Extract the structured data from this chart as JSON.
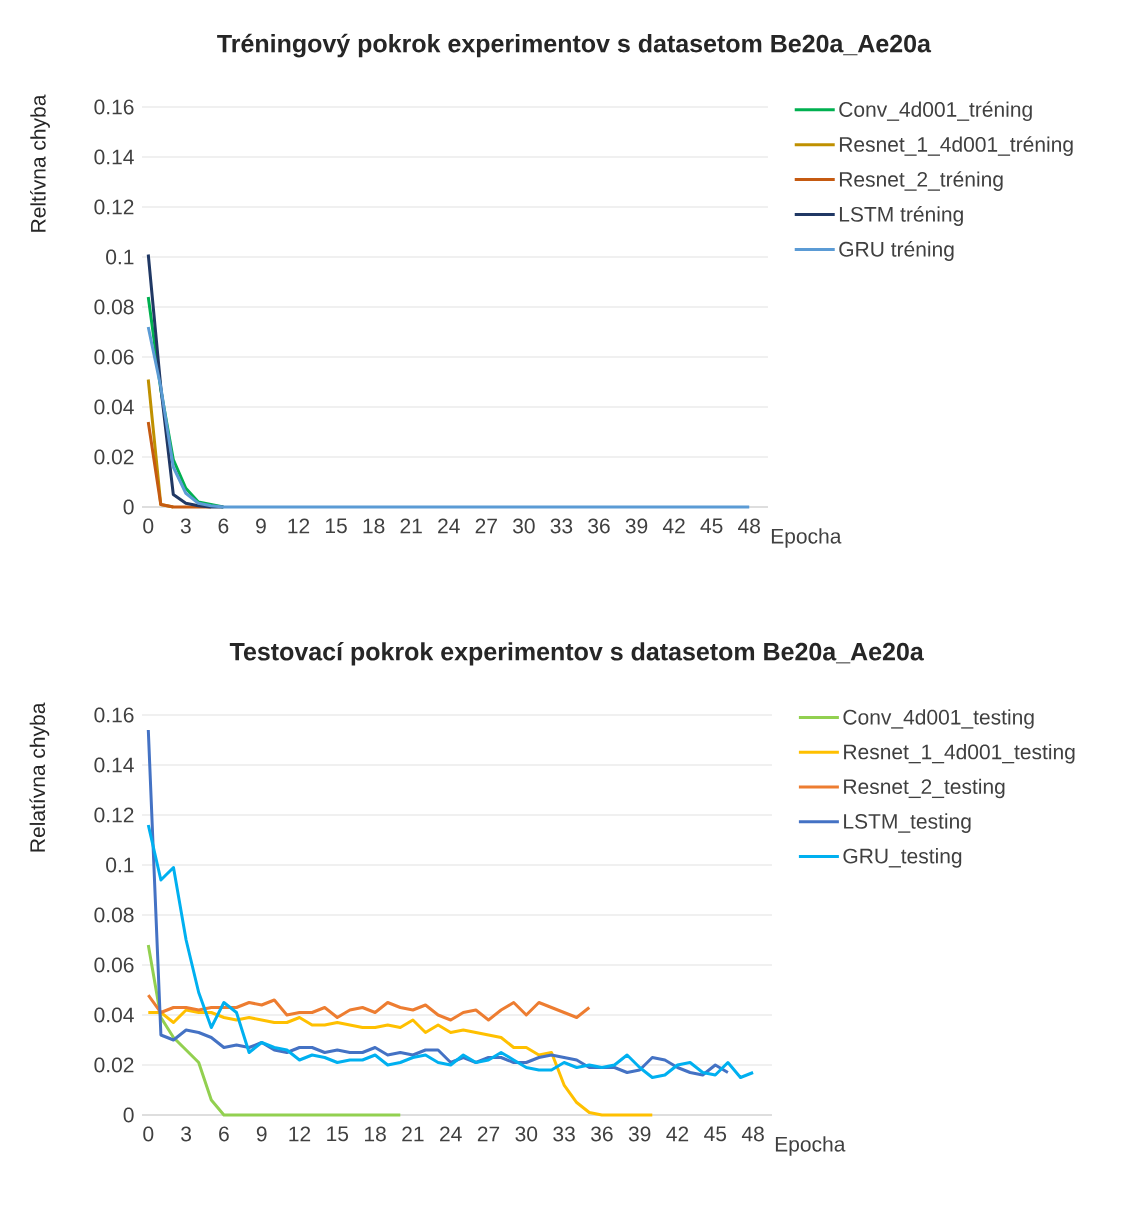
{
  "chart_data": [
    {
      "type": "line",
      "title": "Tréningový pokrok experimentov s datasetom Be20a_Ae20a",
      "xlabel": "Epocha",
      "ylabel": "Reltívna chyba",
      "grid": "y",
      "legend": "right",
      "marker": "none",
      "line_style": "solid",
      "xlim": [
        -0.5,
        49.5
      ],
      "ylim": [
        0,
        0.16
      ],
      "xticks": [
        0,
        3,
        6,
        9,
        12,
        15,
        18,
        21,
        24,
        27,
        30,
        33,
        36,
        39,
        42,
        45,
        48
      ],
      "yticks": [
        0,
        0.02,
        0.04,
        0.06,
        0.08,
        0.1,
        0.12,
        0.14,
        0.16
      ],
      "x": [
        0,
        1,
        2,
        3,
        4,
        5,
        6,
        7,
        8,
        9,
        10,
        11,
        12,
        13,
        14,
        15,
        16,
        17,
        18,
        19,
        20,
        21,
        22,
        23,
        24,
        25,
        26,
        27,
        28,
        29,
        30,
        31,
        32,
        33,
        34,
        35,
        36,
        37,
        38,
        39,
        40,
        41,
        42,
        43,
        44,
        45,
        46,
        47,
        48
      ],
      "series": [
        {
          "name": "Conv_4d001_tréning",
          "color": "#00b050",
          "values": [
            0.084,
            0.047,
            0.019,
            0.0075,
            0.002,
            0.001,
            0,
            null,
            null,
            null,
            null,
            null,
            null,
            null,
            null,
            null,
            null,
            null,
            null,
            null,
            null,
            null,
            null,
            null,
            null,
            null,
            null,
            null,
            null,
            null,
            null,
            null,
            null,
            null,
            null,
            null,
            null,
            null,
            null,
            null,
            null,
            null,
            null,
            null,
            null,
            null,
            null,
            null,
            null
          ]
        },
        {
          "name": "Resnet_1_4d001_tréning",
          "color": "#bf9000",
          "values": [
            0.051,
            0.001,
            0,
            null,
            null,
            null,
            null,
            null,
            null,
            null,
            null,
            null,
            null,
            null,
            null,
            null,
            null,
            null,
            null,
            null,
            null,
            null,
            null,
            null,
            null,
            null,
            null,
            null,
            null,
            null,
            null,
            null,
            null,
            null,
            null,
            null,
            null,
            null,
            null,
            null,
            null,
            null,
            null,
            null,
            null,
            null,
            null,
            null,
            null
          ]
        },
        {
          "name": "Resnet_2_tréning",
          "color": "#c55a11",
          "values": [
            0.034,
            0.001,
            0,
            0,
            0,
            0,
            null,
            null,
            null,
            null,
            null,
            null,
            null,
            null,
            null,
            null,
            null,
            null,
            null,
            null,
            null,
            null,
            null,
            null,
            null,
            null,
            null,
            null,
            null,
            null,
            null,
            null,
            null,
            null,
            null,
            null,
            null,
            null,
            null,
            null,
            null,
            null,
            null,
            null,
            null,
            null,
            null,
            null,
            null
          ]
        },
        {
          "name": "LSTM tréning",
          "color": "#203864",
          "values": [
            0.101,
            0.048,
            0.005,
            0.0015,
            0.0005,
            0,
            0,
            null,
            null,
            null,
            null,
            null,
            null,
            null,
            null,
            null,
            null,
            null,
            null,
            null,
            null,
            null,
            null,
            null,
            null,
            null,
            null,
            null,
            null,
            null,
            null,
            null,
            null,
            null,
            null,
            null,
            null,
            null,
            null,
            null,
            null,
            null,
            null,
            null,
            null,
            null,
            null,
            null,
            null
          ]
        },
        {
          "name": "GRU tréning",
          "color": "#5b9bd5",
          "values": [
            0.072,
            0.048,
            0.016,
            0.0055,
            0.0015,
            0.0005,
            0,
            0,
            0,
            0,
            0,
            0,
            0,
            0,
            0,
            0,
            0,
            0,
            0,
            0,
            0,
            0,
            0,
            0,
            0,
            0,
            0,
            0,
            0,
            0,
            0,
            0,
            0,
            0,
            0,
            0,
            0,
            0,
            0,
            0,
            0,
            0,
            0,
            0,
            0,
            0,
            0,
            0,
            0
          ]
        }
      ]
    },
    {
      "type": "line",
      "title": "Testovací pokrok experimentov s datasetom Be20a_Ae20a",
      "xlabel": "Epocha",
      "ylabel": "Relatívna chyba",
      "grid": "y",
      "legend": "right",
      "marker": "none",
      "line_style": "solid",
      "xlim": [
        -0.5,
        49.5
      ],
      "ylim": [
        0,
        0.16
      ],
      "xticks": [
        0,
        3,
        6,
        9,
        12,
        15,
        18,
        21,
        24,
        27,
        30,
        33,
        36,
        39,
        42,
        45,
        48
      ],
      "yticks": [
        0,
        0.02,
        0.04,
        0.06,
        0.08,
        0.1,
        0.12,
        0.14,
        0.16
      ],
      "x": [
        0,
        1,
        2,
        3,
        4,
        5,
        6,
        7,
        8,
        9,
        10,
        11,
        12,
        13,
        14,
        15,
        16,
        17,
        18,
        19,
        20,
        21,
        22,
        23,
        24,
        25,
        26,
        27,
        28,
        29,
        30,
        31,
        32,
        33,
        34,
        35,
        36,
        37,
        38,
        39,
        40,
        41,
        42,
        43,
        44,
        45,
        46,
        47,
        48
      ],
      "series": [
        {
          "name": "Conv_4d001_testing",
          "color": "#92d050",
          "values": [
            0.068,
            0.039,
            0.031,
            0.026,
            0.021,
            0.006,
            0,
            0,
            0,
            0,
            0,
            0,
            0,
            0,
            0,
            0,
            0,
            0,
            0,
            0,
            0,
            null,
            null,
            null,
            null,
            null,
            null,
            null,
            null,
            null,
            null,
            null,
            null,
            null,
            null,
            null,
            null,
            null,
            null,
            null,
            null,
            null,
            null,
            null,
            null,
            null,
            null,
            null,
            null
          ]
        },
        {
          "name": "Resnet_1_4d001_testing",
          "color": "#ffc000",
          "values": [
            0.041,
            0.041,
            0.037,
            0.042,
            0.041,
            0.041,
            0.039,
            0.038,
            0.039,
            0.038,
            0.037,
            0.037,
            0.039,
            0.036,
            0.036,
            0.037,
            0.036,
            0.035,
            0.035,
            0.036,
            0.035,
            0.038,
            0.033,
            0.036,
            0.033,
            0.034,
            0.033,
            0.032,
            0.031,
            0.027,
            0.027,
            0.024,
            0.025,
            0.012,
            0.005,
            0.001,
            0,
            0,
            0,
            0,
            0,
            null,
            null,
            null,
            null,
            null,
            null,
            null,
            null
          ]
        },
        {
          "name": "Resnet_2_testing",
          "color": "#ed7d31",
          "values": [
            0.048,
            0.041,
            0.043,
            0.043,
            0.042,
            0.043,
            0.043,
            0.043,
            0.045,
            0.044,
            0.046,
            0.04,
            0.041,
            0.041,
            0.043,
            0.039,
            0.042,
            0.043,
            0.041,
            0.045,
            0.043,
            0.042,
            0.044,
            0.04,
            0.038,
            0.041,
            0.042,
            0.038,
            0.042,
            0.045,
            0.04,
            0.045,
            0.043,
            0.041,
            0.039,
            0.043,
            null,
            null,
            null,
            null,
            null,
            null,
            null,
            null,
            null,
            null,
            null,
            null,
            null
          ]
        },
        {
          "name": "LSTM_testing",
          "color": "#4472c4",
          "values": [
            0.154,
            0.032,
            0.03,
            0.034,
            0.033,
            0.031,
            0.027,
            0.028,
            0.027,
            0.029,
            0.026,
            0.025,
            0.027,
            0.027,
            0.025,
            0.026,
            0.025,
            0.025,
            0.027,
            0.024,
            0.025,
            0.024,
            0.026,
            0.026,
            0.021,
            0.023,
            0.021,
            0.023,
            0.023,
            0.021,
            0.021,
            0.023,
            0.024,
            0.023,
            0.022,
            0.019,
            0.019,
            0.019,
            0.017,
            0.018,
            0.023,
            0.022,
            0.019,
            0.017,
            0.016,
            0.02,
            0.017,
            null,
            null
          ]
        },
        {
          "name": "GRU_testing",
          "color": "#00b0f0",
          "values": [
            0.116,
            0.094,
            0.099,
            0.07,
            0.049,
            0.035,
            0.045,
            0.041,
            0.025,
            0.029,
            0.027,
            0.026,
            0.022,
            0.024,
            0.023,
            0.021,
            0.022,
            0.022,
            0.024,
            0.02,
            0.021,
            0.023,
            0.024,
            0.021,
            0.02,
            0.024,
            0.021,
            0.022,
            0.025,
            0.022,
            0.019,
            0.018,
            0.018,
            0.021,
            0.019,
            0.02,
            0.019,
            0.02,
            0.024,
            0.019,
            0.015,
            0.016,
            0.02,
            0.021,
            0.017,
            0.016,
            0.021,
            0.015,
            0.017
          ]
        }
      ]
    }
  ]
}
